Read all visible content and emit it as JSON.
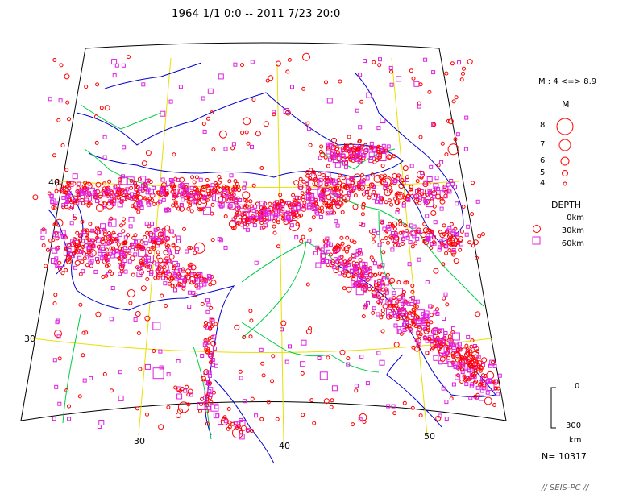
{
  "title": "1964 1/1 0:0 -- 2011 7/23 20:0",
  "lat_labels": [
    "40",
    "30"
  ],
  "lon_labels": [
    "30",
    "40",
    "50"
  ],
  "legend": {
    "range": "M : 4 <=> 8.9",
    "m_title": "M",
    "magnitudes": [
      "8",
      "7",
      "6",
      "5",
      "4"
    ],
    "depth_title": "DEPTH",
    "depths": [
      "0km",
      "30km",
      "60km"
    ]
  },
  "scale": {
    "top": "0",
    "bottom": "300",
    "unit": "km"
  },
  "count": "N= 10317",
  "brand": "// SEIS-PC //",
  "colors": {
    "shallow": "#ff0000",
    "deep": "#e020e0",
    "graticule": "#e8e000",
    "coast": "#0000cc",
    "border": "#00cc44"
  }
}
